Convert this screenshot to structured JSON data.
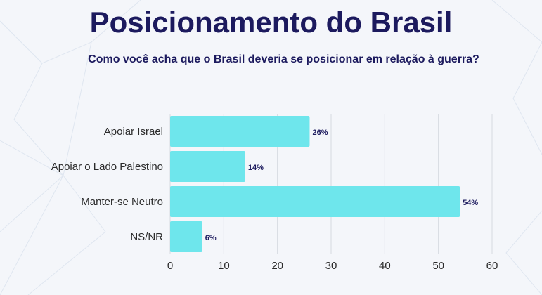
{
  "header": {
    "title": "Posicionamento do Brasil",
    "subtitle": "Como você acha que o Brasil deveria se posicionar em relação à guerra?"
  },
  "chart_data": {
    "type": "bar",
    "orientation": "horizontal",
    "title": "Posicionamento do Brasil",
    "subtitle": "Como você acha que o Brasil deveria se posicionar em relação à guerra?",
    "xlabel": "",
    "ylabel": "",
    "categories": [
      "Apoiar Israel",
      "Apoiar o Lado Palestino",
      "Manter-se Neutro",
      "NS/NR"
    ],
    "values": [
      26,
      14,
      54,
      6
    ],
    "data_labels": [
      "26%",
      "14%",
      "54%",
      "6%"
    ],
    "xlim": [
      0,
      60
    ],
    "xticks": [
      0,
      10,
      20,
      30,
      40,
      50,
      60
    ],
    "grid": true,
    "legend": "none",
    "colors": {
      "bar": "#6ee6ec",
      "title": "#1c1a5e",
      "label": "#2b2b2b",
      "grid": "#d6d9e0"
    }
  }
}
